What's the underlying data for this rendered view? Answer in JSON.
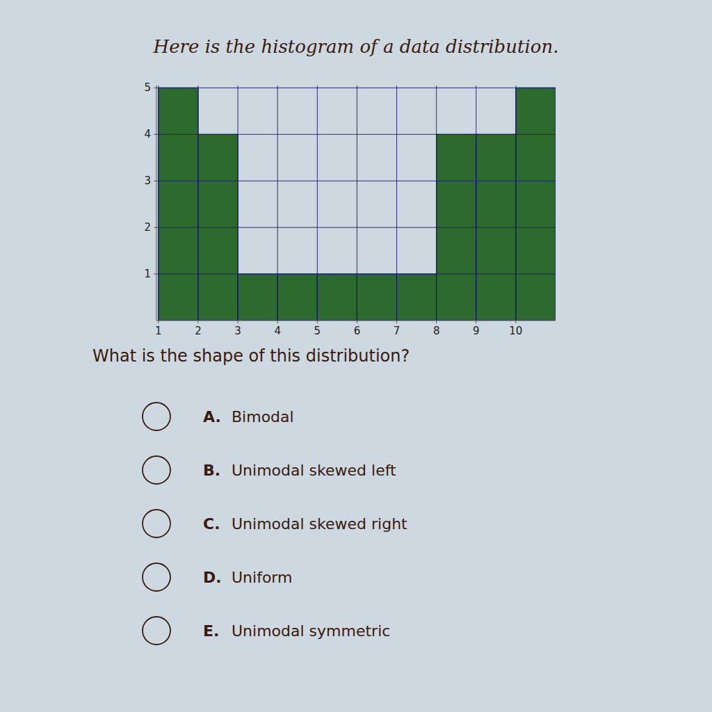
{
  "chart_data": {
    "type": "histogram",
    "title": "Here is the histogram of a data distribution.",
    "annotations": [
      "What is the shape of this distribution?",
      "A.",
      "Bimodal",
      "B.",
      "Unimodal skewed left",
      "C.",
      "Unimodal skewed right",
      "D.",
      "Uniform",
      "E.",
      "Unimodal symmetric"
    ],
    "bins": [
      1,
      2,
      3,
      4,
      5,
      6,
      7,
      8,
      9,
      10,
      11
    ],
    "values": [
      5,
      4,
      1,
      1,
      1,
      1,
      1,
      4,
      4,
      5
    ],
    "color": "#2d6a2d",
    "xlim": [
      0.95,
      11
    ],
    "xticks": [
      1,
      2,
      3,
      4,
      5,
      6,
      7,
      8,
      9,
      10
    ],
    "ylim": [
      0,
      5.05
    ],
    "yticks": [
      1,
      2,
      3,
      4,
      5
    ],
    "grid": true
  }
}
